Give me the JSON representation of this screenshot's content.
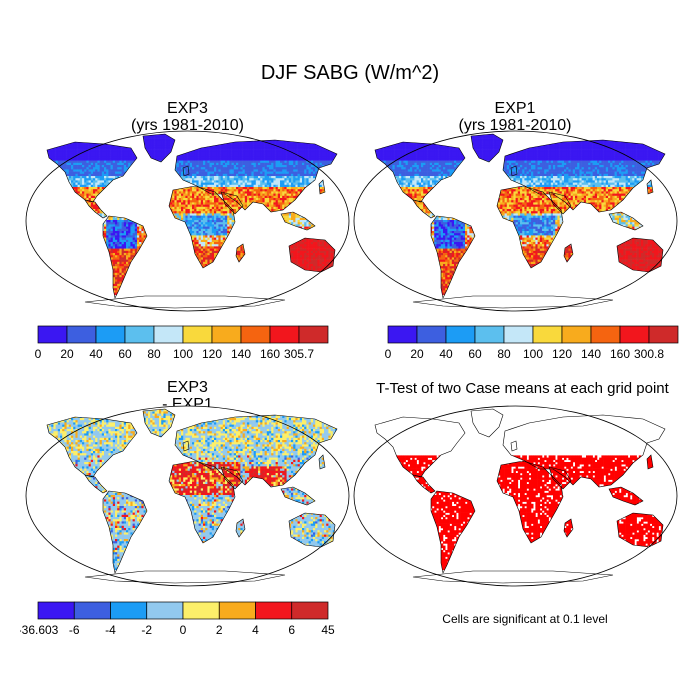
{
  "figure": {
    "title": "DJF SABG (W/m^2)",
    "footnote": "Cells are significant at 0.1 level"
  },
  "panels": [
    {
      "id": "exp3",
      "title_line1": "EXP3",
      "title_line2": "(yrs 1981-2010)",
      "colorbar": {
        "labels": [
          "0",
          "20",
          "40",
          "60",
          "80",
          "100",
          "120",
          "140",
          "160",
          "305.7"
        ],
        "colors": [
          "#3b17f2",
          "#3d5fe0",
          "#1c9cf5",
          "#5cbfee",
          "#c4e7f8",
          "#f9d93c",
          "#f8ab1d",
          "#f56410",
          "#f2161d",
          "#cf2a2a"
        ]
      }
    },
    {
      "id": "exp1",
      "title_line1": "EXP1",
      "title_line2": "(yrs 1981-2010)",
      "colorbar": {
        "labels": [
          "0",
          "20",
          "40",
          "60",
          "80",
          "100",
          "120",
          "140",
          "160",
          "300.8"
        ],
        "colors": [
          "#3b17f2",
          "#3d5fe0",
          "#1c9cf5",
          "#5cbfee",
          "#c4e7f8",
          "#f9d93c",
          "#f8ab1d",
          "#f56410",
          "#f2161d",
          "#cf2a2a"
        ]
      }
    },
    {
      "id": "diff",
      "title_line1": "EXP3",
      "title_line2": "- EXP1",
      "colorbar": {
        "labels": [
          "-36.603",
          "-6",
          "-4",
          "-2",
          "0",
          "2",
          "4",
          "6",
          "45"
        ],
        "colors": [
          "#3b17f2",
          "#3d5fe0",
          "#1c9cf5",
          "#92c9ee",
          "#fcef6a",
          "#f8ab1d",
          "#f2161d",
          "#cf2a2a"
        ]
      }
    },
    {
      "id": "ttest",
      "title_line1": "T-Test of two Case means at each grid point",
      "title_line2": "",
      "colors": [
        "#ff0000"
      ]
    }
  ]
}
